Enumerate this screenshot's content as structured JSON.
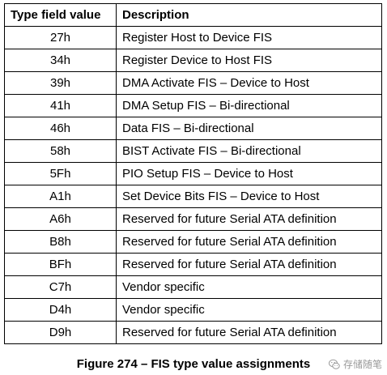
{
  "table": {
    "headers": [
      "Type field value",
      "Description"
    ],
    "rows": [
      {
        "code": "27h",
        "description": "Register Host to Device FIS"
      },
      {
        "code": "34h",
        "description": "Register Device to Host FIS"
      },
      {
        "code": "39h",
        "description": "DMA Activate FIS – Device to Host"
      },
      {
        "code": "41h",
        "description": "DMA Setup FIS – Bi-directional"
      },
      {
        "code": "46h",
        "description": "Data FIS – Bi-directional"
      },
      {
        "code": "58h",
        "description": "BIST Activate FIS – Bi-directional"
      },
      {
        "code": "5Fh",
        "description": "PIO Setup FIS – Device to Host"
      },
      {
        "code": "A1h",
        "description": "Set Device Bits FIS – Device to Host"
      },
      {
        "code": "A6h",
        "description": "Reserved for future Serial ATA definition"
      },
      {
        "code": "B8h",
        "description": "Reserved for future Serial ATA definition"
      },
      {
        "code": "BFh",
        "description": "Reserved for future Serial ATA definition"
      },
      {
        "code": "C7h",
        "description": "Vendor specific"
      },
      {
        "code": "D4h",
        "description": "Vendor specific"
      },
      {
        "code": "D9h",
        "description": "Reserved for future Serial ATA definition"
      }
    ]
  },
  "caption": "Figure 274 – FIS type value assignments",
  "watermark": {
    "text": "存储随笔",
    "icon": "wechat-icon"
  }
}
